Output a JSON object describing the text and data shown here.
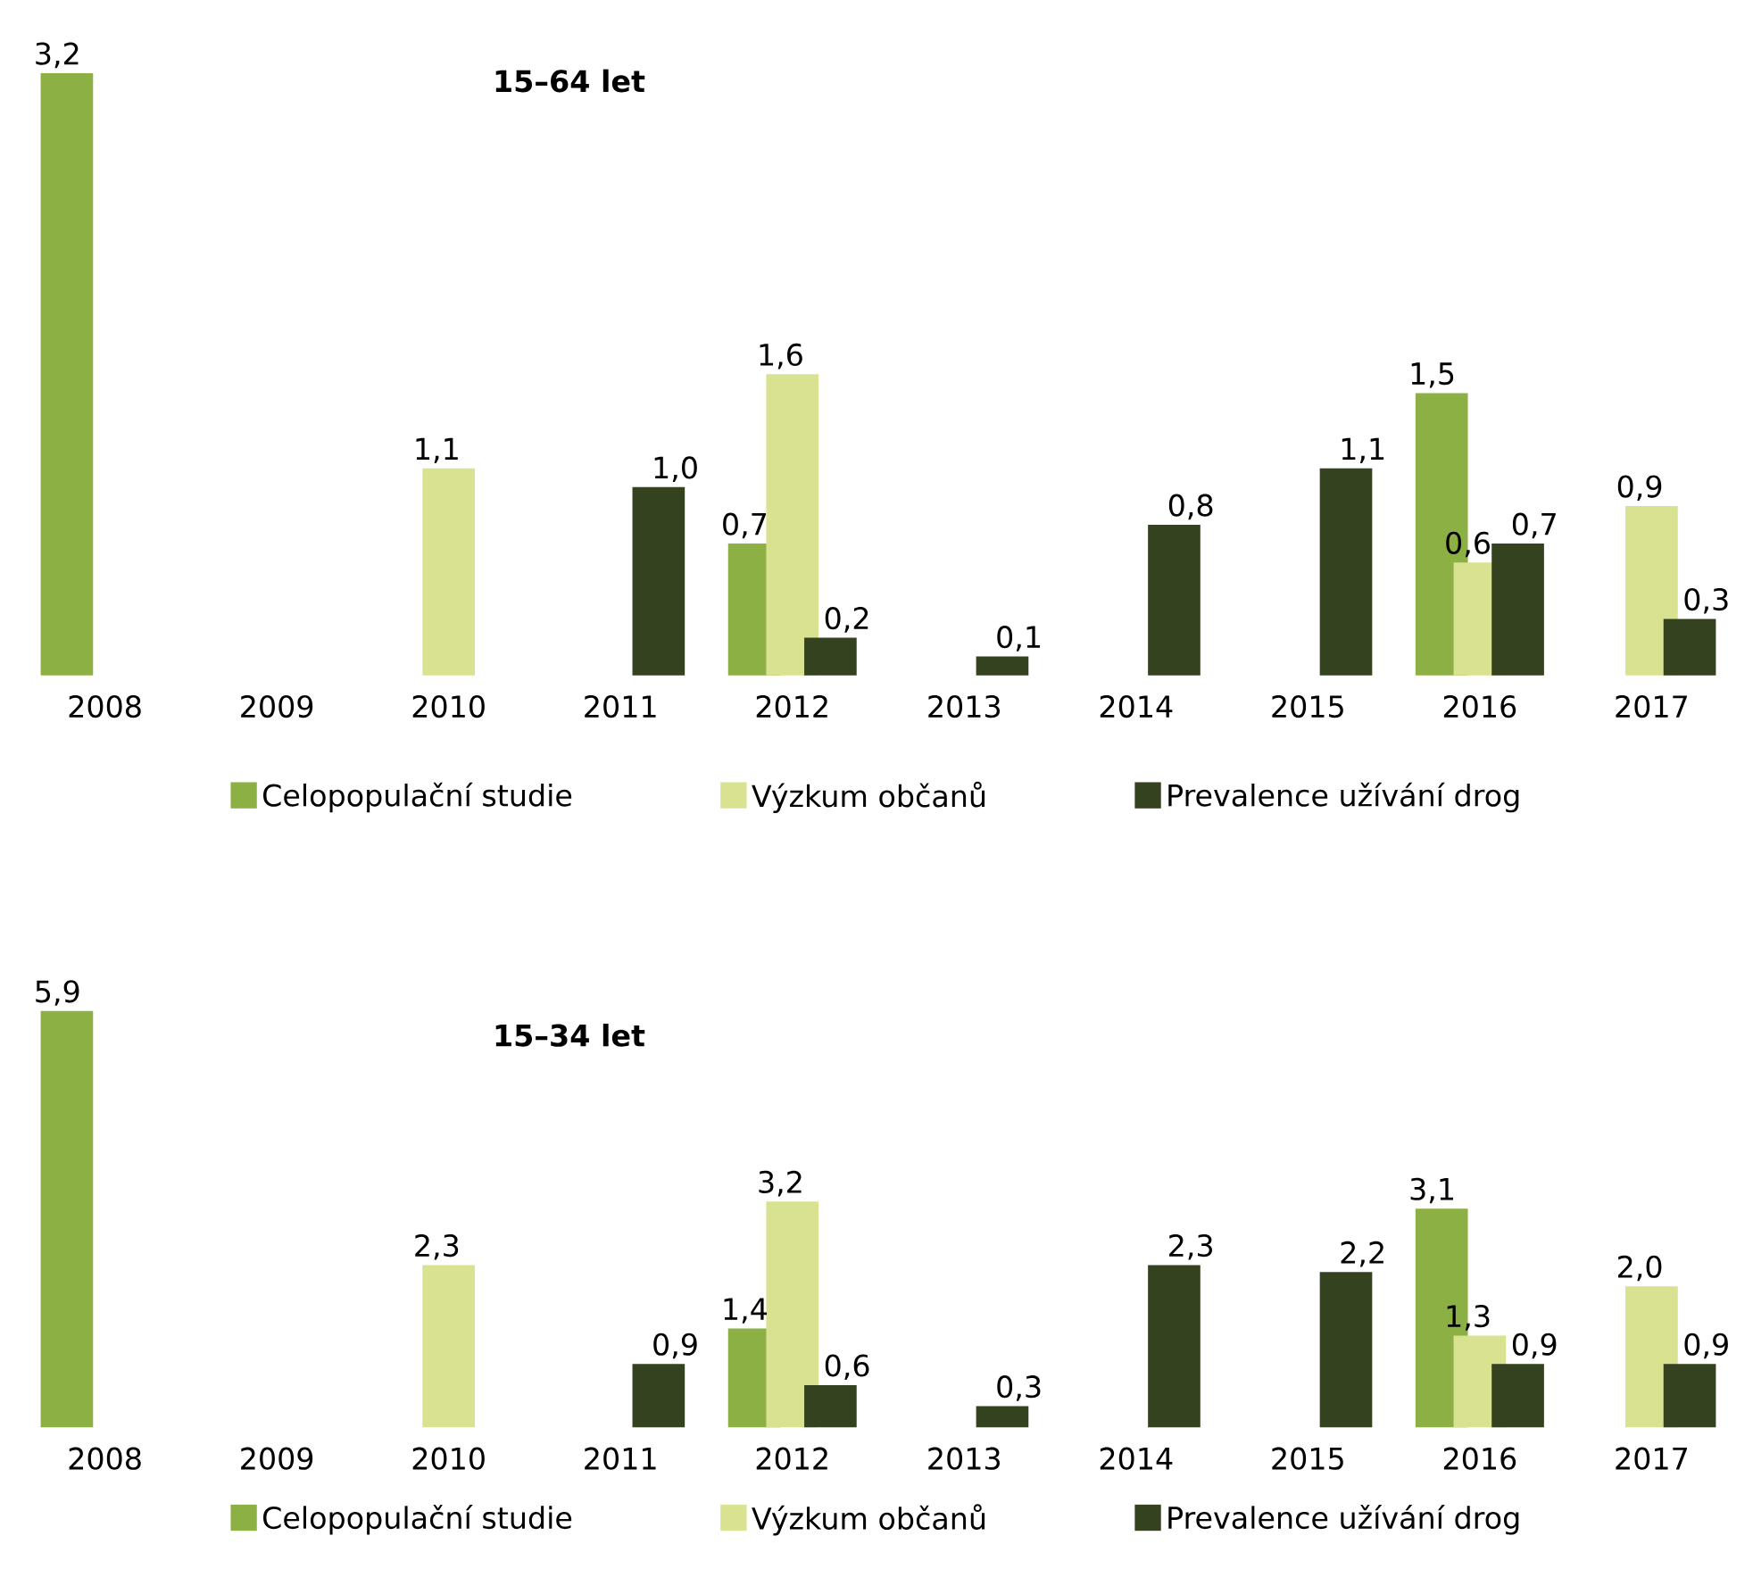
{
  "chart_data": [
    {
      "type": "bar",
      "title": "15–64 let",
      "categories": [
        "2008",
        "2009",
        "2010",
        "2011",
        "2012",
        "2013",
        "2014",
        "2015",
        "2016",
        "2017"
      ],
      "series": [
        {
          "name": "Celopopulační studie",
          "color": "#8cb043",
          "values": [
            3.2,
            null,
            null,
            null,
            0.7,
            null,
            null,
            null,
            1.5,
            null
          ],
          "value_labels": [
            "3,2",
            null,
            null,
            null,
            "0,7",
            null,
            null,
            null,
            "1,5",
            null
          ]
        },
        {
          "name": "Výzkum občanů",
          "color": "#d8e290",
          "values": [
            null,
            null,
            1.1,
            null,
            1.6,
            null,
            null,
            null,
            0.6,
            0.9
          ],
          "value_labels": [
            null,
            null,
            "1,1",
            null,
            "1,6",
            null,
            null,
            null,
            "0,6",
            "0,9"
          ]
        },
        {
          "name": "Prevalence užívání drog",
          "color": "#344220",
          "values": [
            null,
            null,
            null,
            1.0,
            0.2,
            0.1,
            0.8,
            1.1,
            0.7,
            0.3
          ],
          "value_labels": [
            null,
            null,
            null,
            "1,0",
            "0,2",
            "0,1",
            "0,8",
            "1,1",
            "0,7",
            "0,3"
          ]
        }
      ],
      "legend": "bottom"
    },
    {
      "type": "bar",
      "title": "15–34 let",
      "categories": [
        "2008",
        "2009",
        "2010",
        "2011",
        "2012",
        "2013",
        "2014",
        "2015",
        "2016",
        "2017"
      ],
      "series": [
        {
          "name": "Celopopulační studie",
          "color": "#8cb043",
          "values": [
            5.9,
            null,
            null,
            null,
            1.4,
            null,
            null,
            null,
            3.1,
            null
          ],
          "value_labels": [
            "5,9",
            null,
            null,
            null,
            "1,4",
            null,
            null,
            null,
            "3,1",
            null
          ]
        },
        {
          "name": "Výzkum občanů",
          "color": "#d8e290",
          "values": [
            null,
            null,
            2.3,
            null,
            3.2,
            null,
            null,
            null,
            1.3,
            2.0
          ],
          "value_labels": [
            null,
            null,
            "2,3",
            null,
            "3,2",
            null,
            null,
            null,
            "1,3",
            "2,0"
          ]
        },
        {
          "name": "Prevalence užívání drog",
          "color": "#344220",
          "values": [
            null,
            null,
            null,
            0.9,
            0.6,
            0.3,
            2.3,
            2.2,
            0.9,
            0.9
          ],
          "value_labels": [
            null,
            null,
            null,
            "0,9",
            "0,6",
            "0,3",
            "2,3",
            "2,2",
            "0,9",
            "0,9"
          ]
        }
      ],
      "legend": "bottom"
    }
  ]
}
